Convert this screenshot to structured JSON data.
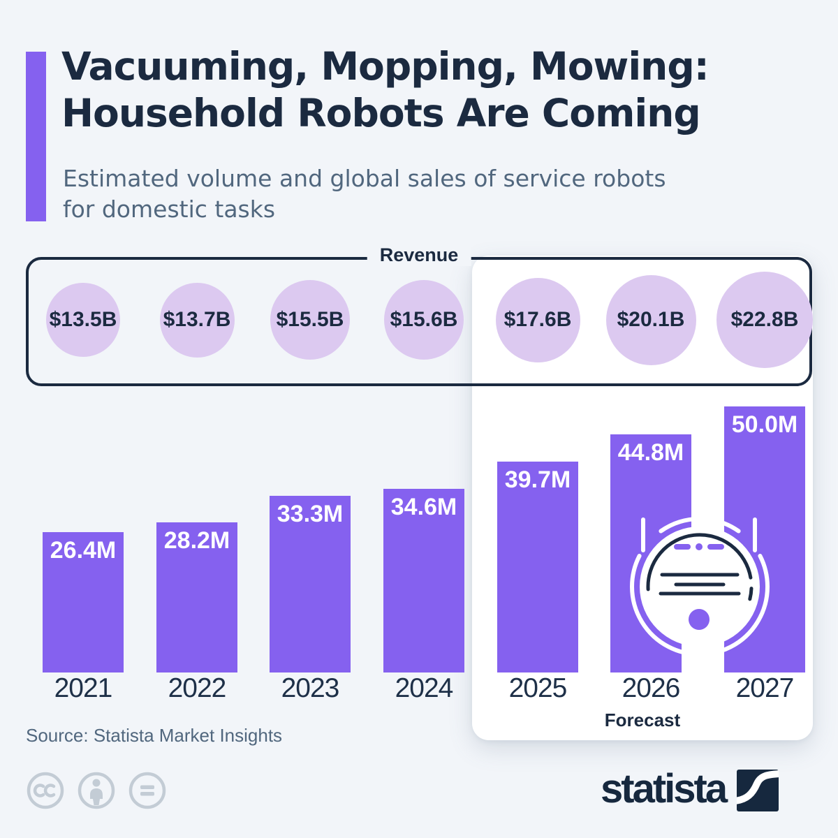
{
  "header": {
    "title_line1": "Vacuuming, Mopping, Mowing:",
    "title_line2": "Household Robots Are Coming",
    "subtitle_line1": "Estimated volume and global sales of service robots",
    "subtitle_line2": "for domestic tasks"
  },
  "revenue_box": {
    "label": "Revenue"
  },
  "chart_data": {
    "type": "bar",
    "title": "Vacuuming, Mopping, Mowing: Household Robots Are Coming",
    "subtitle": "Estimated volume and global sales of service robots for domestic tasks",
    "categories": [
      "2021",
      "2022",
      "2023",
      "2024",
      "2025",
      "2026",
      "2027"
    ],
    "series": [
      {
        "name": "Estimated volume of service robots for domestic tasks",
        "unit": "million units",
        "values": [
          26.4,
          28.2,
          33.3,
          34.6,
          39.7,
          44.8,
          50.0
        ],
        "labels": [
          "26.4M",
          "28.2M",
          "33.3M",
          "34.6M",
          "39.7M",
          "44.8M",
          "50.0M"
        ],
        "representation": "bars"
      },
      {
        "name": "Global sales (revenue)",
        "unit": "billion USD",
        "values": [
          13.5,
          13.7,
          15.5,
          15.6,
          17.6,
          20.1,
          22.8
        ],
        "labels": [
          "$13.5B",
          "$13.7B",
          "$15.5B",
          "$15.6B",
          "$17.6B",
          "$20.1B",
          "$22.8B"
        ],
        "representation": "sized-circles"
      }
    ],
    "forecast": {
      "label": "Forecast",
      "categories": [
        "2025",
        "2026",
        "2027"
      ]
    },
    "legend_position": "none",
    "grid": false,
    "bar_color": "#8561ef",
    "bubble_color": "#dcc9f0",
    "value_label_color": "#ffffff"
  },
  "footer": {
    "source": "Source: Statista Market Insights",
    "license_icons": [
      "cc-icon",
      "attribution-person-icon",
      "equals-icon"
    ],
    "brand": "statista"
  },
  "colors": {
    "background": "#f2f5f9",
    "navy": "#1b2a40",
    "purple": "#8561ef",
    "lavender": "#dcc9f0",
    "panel": "#ffffff",
    "subtitle_gray": "#51677e",
    "license_gray": "#c3ccd5"
  }
}
